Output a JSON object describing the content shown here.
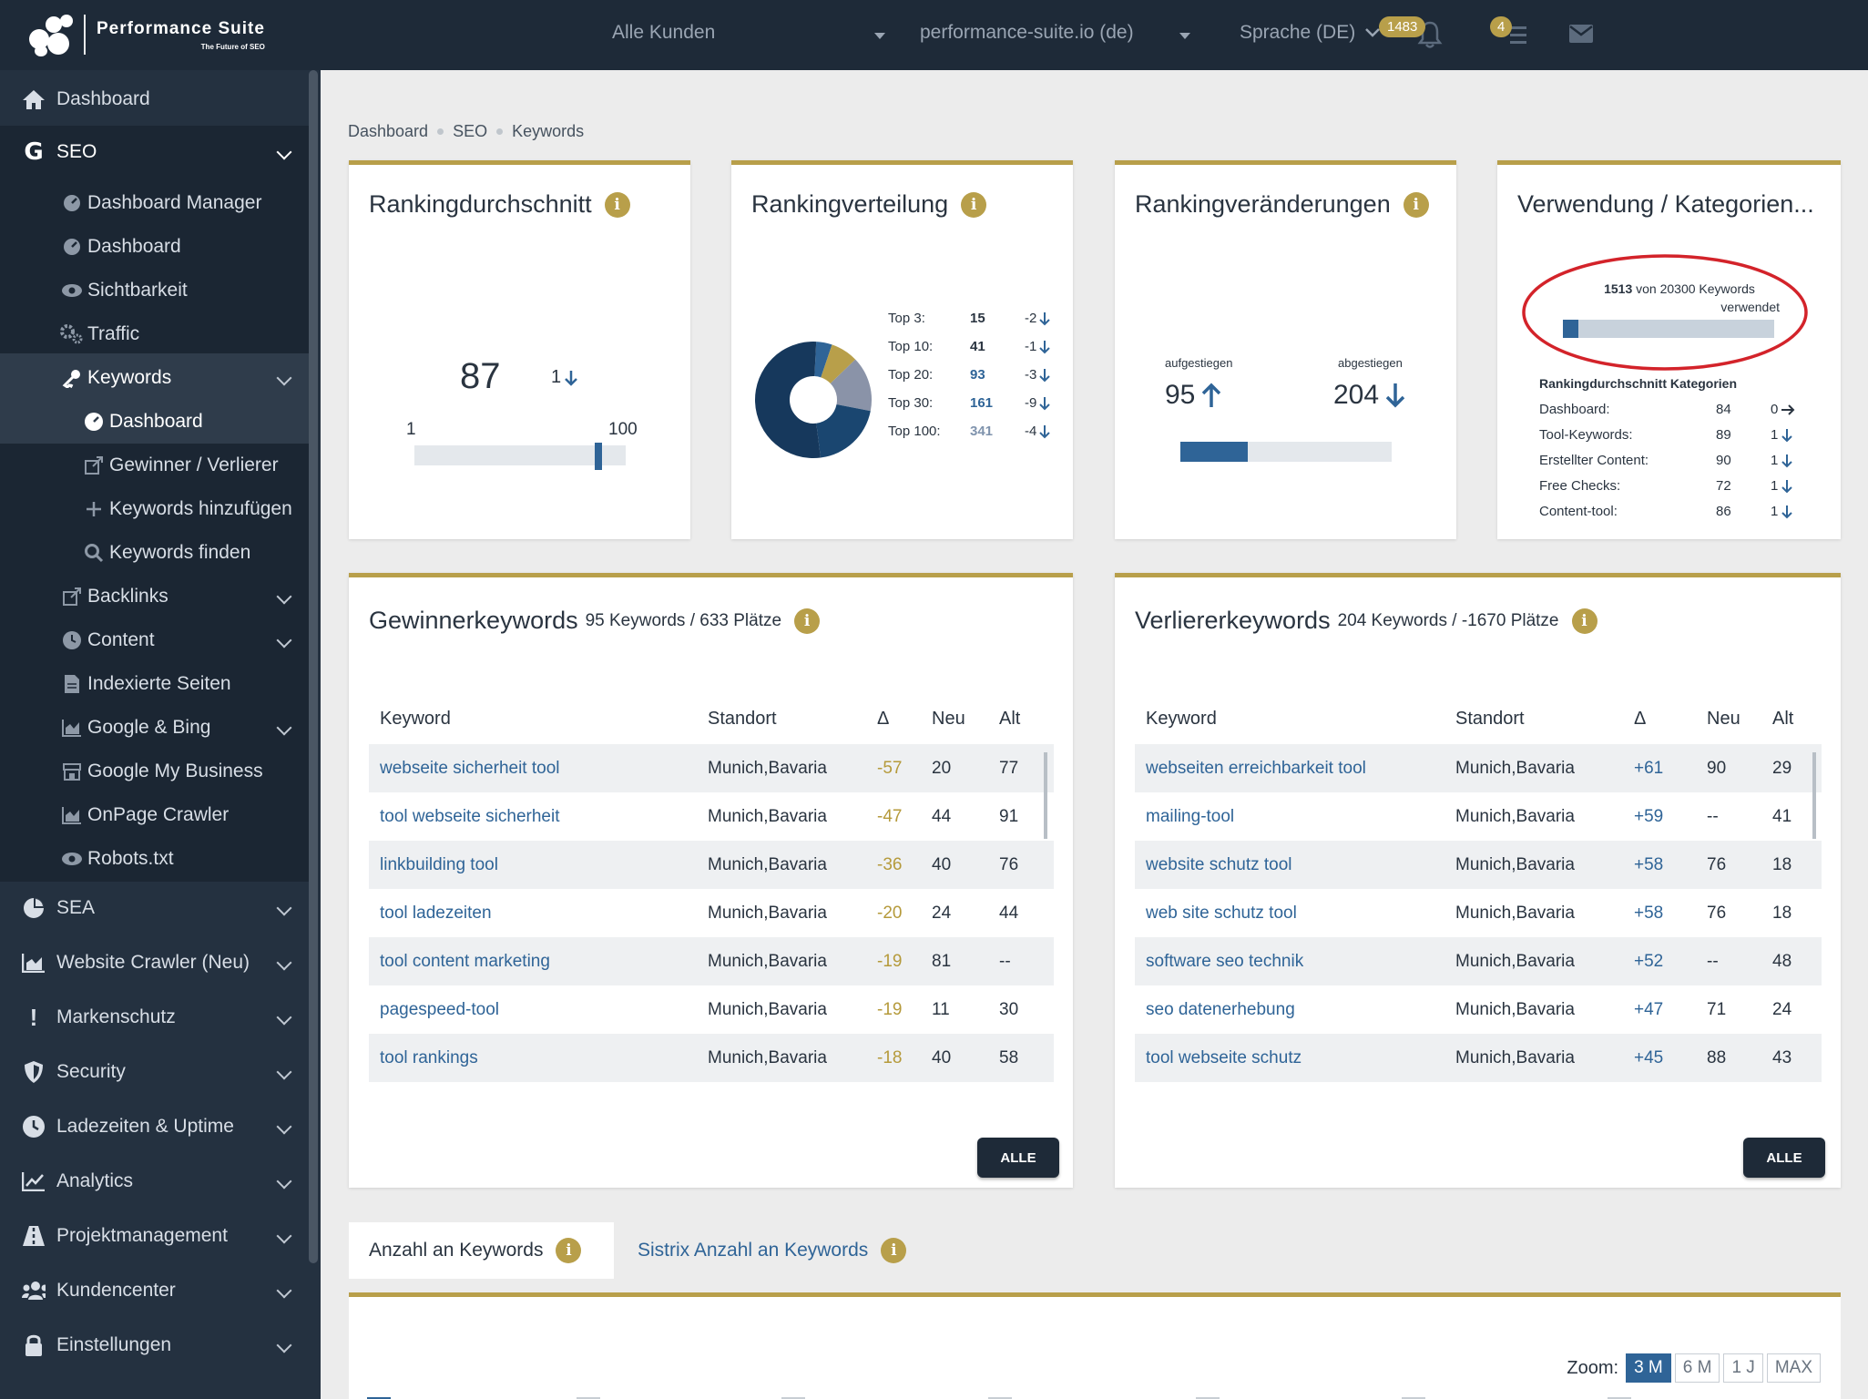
{
  "topbar": {
    "logo_title": "Performance Suite",
    "logo_subtitle": "The Future of SEO",
    "customer_select": "Alle Kunden",
    "domain_select": "performance-suite.io (de)",
    "language_select": "Sprache (DE)",
    "notification_count": "1483",
    "task_count": "4"
  },
  "sidebar": {
    "dashboard": "Dashboard",
    "seo": "SEO",
    "seo_items": [
      "Dashboard Manager",
      "Dashboard",
      "Sichtbarkeit",
      "Traffic"
    ],
    "keywords": "Keywords",
    "keywords_items": [
      "Dashboard",
      "Gewinner / Verlierer",
      "Keywords hinzufügen",
      "Keywords finden"
    ],
    "seo_more": [
      "Backlinks",
      "Content",
      "Indexierte Seiten",
      "Google & Bing",
      "Google My Business",
      "OnPage Crawler",
      "Robots.txt"
    ],
    "sections": [
      "SEA",
      "Website Crawler (Neu)",
      "Markenschutz",
      "Security",
      "Ladezeiten & Uptime",
      "Analytics",
      "Projektmanagement",
      "Kundencenter",
      "Einstellungen"
    ]
  },
  "breadcrumb": [
    "Dashboard",
    "SEO",
    "Keywords"
  ],
  "ranking_avg": {
    "title": "Rankingdurchschnitt",
    "value": "87",
    "change": "1",
    "min": "1",
    "max": "100",
    "position_fraction": 0.87
  },
  "ranking_dist": {
    "title": "Rankingverteilung",
    "rows": [
      {
        "label": "Top 3:",
        "value": "15",
        "change": "-2"
      },
      {
        "label": "Top 10:",
        "value": "41",
        "change": "-1"
      },
      {
        "label": "Top 20:",
        "value": "93",
        "change": "-3"
      },
      {
        "label": "Top 30:",
        "value": "161",
        "change": "-9"
      },
      {
        "label": "Top 100:",
        "value": "341",
        "change": "-4"
      }
    ],
    "colors": [
      "#1a4670",
      "#2f6497",
      "#b89f4a",
      "#8a93a8",
      "#16385c"
    ]
  },
  "ranking_changes": {
    "title": "Rankingveränderungen",
    "up_label": "aufgestiegen",
    "up_value": "95",
    "down_label": "abgestiegen",
    "down_value": "204",
    "up_fraction": 0.32
  },
  "usage": {
    "title": "Verwendung / Kategorien...",
    "used": "1513",
    "total_text": "von 20300 Keywords",
    "used_word": "verwendet",
    "used_fraction": 0.0745,
    "categories_title": "Rankingdurchschnitt Kategorien",
    "categories": [
      {
        "label": "Dashboard:",
        "value": "84",
        "change": "0",
        "dir": "right"
      },
      {
        "label": "Tool-Keywords:",
        "value": "89",
        "change": "1",
        "dir": "down"
      },
      {
        "label": "Erstellter Content:",
        "value": "90",
        "change": "1",
        "dir": "down"
      },
      {
        "label": "Free Checks:",
        "value": "72",
        "change": "1",
        "dir": "down"
      },
      {
        "label": "Content-tool:",
        "value": "86",
        "change": "1",
        "dir": "down"
      }
    ]
  },
  "winners": {
    "title": "Gewinnerkeywords",
    "subtitle": "95 Keywords / 633 Plätze",
    "columns": [
      "Keyword",
      "Standort",
      "Δ",
      "Neu",
      "Alt"
    ],
    "rows": [
      [
        "webseite sicherheit tool",
        "Munich,Bavaria",
        "-57",
        "20",
        "77"
      ],
      [
        "tool webseite sicherheit",
        "Munich,Bavaria",
        "-47",
        "44",
        "91"
      ],
      [
        "linkbuilding tool",
        "Munich,Bavaria",
        "-36",
        "40",
        "76"
      ],
      [
        "tool ladezeiten",
        "Munich,Bavaria",
        "-20",
        "24",
        "44"
      ],
      [
        "tool content marketing",
        "Munich,Bavaria",
        "-19",
        "81",
        "--"
      ],
      [
        "pagespeed-tool",
        "Munich,Bavaria",
        "-19",
        "11",
        "30"
      ],
      [
        "tool rankings",
        "Munich,Bavaria",
        "-18",
        "40",
        "58"
      ]
    ],
    "button": "ALLE"
  },
  "losers": {
    "title": "Verliererkeywords",
    "subtitle": "204 Keywords / -1670 Plätze",
    "columns": [
      "Keyword",
      "Standort",
      "Δ",
      "Neu",
      "Alt"
    ],
    "rows": [
      [
        "webseiten erreichbarkeit tool",
        "Munich,Bavaria",
        "+61",
        "90",
        "29"
      ],
      [
        "mailing-tool",
        "Munich,Bavaria",
        "+59",
        "--",
        "41"
      ],
      [
        "website schutz tool",
        "Munich,Bavaria",
        "+58",
        "76",
        "18"
      ],
      [
        "web site schutz tool",
        "Munich,Bavaria",
        "+58",
        "76",
        "18"
      ],
      [
        "software seo technik",
        "Munich,Bavaria",
        "+52",
        "--",
        "48"
      ],
      [
        "seo datenerhebung",
        "Munich,Bavaria",
        "+47",
        "71",
        "24"
      ],
      [
        "tool webseite schutz",
        "Munich,Bavaria",
        "+45",
        "88",
        "43"
      ]
    ],
    "button": "ALLE"
  },
  "tabs": [
    "Anzahl an Keywords",
    "Sistrix Anzahl an Keywords"
  ],
  "zoom": {
    "label": "Zoom:",
    "options": [
      "3 M",
      "6 M",
      "1 J",
      "MAX"
    ],
    "active": "3 M"
  }
}
